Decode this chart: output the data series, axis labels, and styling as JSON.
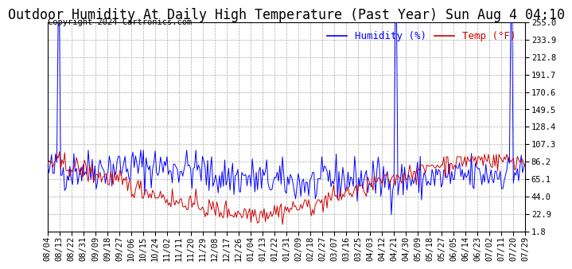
{
  "title": "Outdoor Humidity At Daily High Temperature (Past Year) Sun Aug 4 04:10",
  "copyright": "Copyright 2024 Cartronics.com",
  "legend_humidity_label": "Humidity (%)",
  "legend_temp_label": "Temp (°F)",
  "humidity_color": "#0000ff",
  "temp_color": "#cc0000",
  "background_color": "#ffffff",
  "grid_color": "#aaaaaa",
  "ylim": [
    1.8,
    255.0
  ],
  "yticks": [
    1.8,
    22.9,
    44.0,
    65.1,
    86.2,
    107.3,
    128.4,
    149.5,
    170.6,
    191.7,
    212.8,
    233.9,
    255.0
  ],
  "x_labels": [
    "08/04",
    "08/13",
    "08/22",
    "08/31",
    "09/09",
    "09/18",
    "09/27",
    "10/06",
    "10/15",
    "10/24",
    "11/02",
    "11/11",
    "11/20",
    "11/29",
    "12/08",
    "12/17",
    "12/26",
    "01/04",
    "01/13",
    "01/22",
    "01/31",
    "02/09",
    "02/18",
    "02/27",
    "03/07",
    "03/16",
    "03/25",
    "04/03",
    "04/12",
    "04/21",
    "04/30",
    "05/09",
    "05/18",
    "05/27",
    "06/05",
    "06/14",
    "06/23",
    "07/02",
    "07/11",
    "07/20",
    "07/29"
  ],
  "title_fontsize": 12,
  "tick_fontsize": 7.5,
  "copyright_fontsize": 7.5,
  "legend_fontsize": 9,
  "num_points": 365,
  "random_seed": 42
}
